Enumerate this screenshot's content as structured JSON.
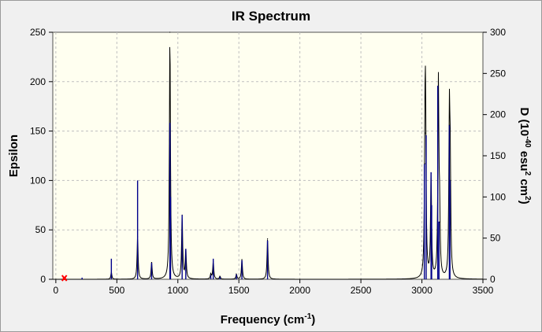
{
  "chart_data": {
    "type": "line",
    "title": "IR Spectrum",
    "xlabel_main": "Frequency (cm",
    "xlabel_sup": "-1",
    "xlabel_end": ")",
    "ylabel_left": "Epsilon",
    "ylabel_right_parts": [
      "D (10",
      "-40",
      " esu",
      "2",
      " cm",
      "2",
      ")"
    ],
    "xlim": [
      -25,
      3500
    ],
    "ylim_left": [
      0,
      250
    ],
    "ylim_right": [
      0,
      300
    ],
    "x_ticks": [
      0,
      500,
      1000,
      1500,
      2000,
      2500,
      3000,
      3500
    ],
    "y_left_ticks": [
      0,
      50,
      100,
      150,
      200,
      250
    ],
    "y_right_ticks": [
      0,
      50,
      100,
      150,
      200,
      250,
      300
    ],
    "grid": true,
    "colors": {
      "plot_bg": "#fffff0",
      "spectrum": "#000000",
      "sticks": "#00008b",
      "grid": "#bfbfbf",
      "marker": "#ff0000"
    },
    "series": [
      {
        "kind": "stick-intensities-right-axis",
        "x": [
          70,
          215,
          455,
          670,
          785,
          935,
          940,
          1035,
          1065,
          1270,
          1290,
          1345,
          1480,
          1525,
          1735,
          3020,
          3035,
          3075,
          3080,
          3130,
          3140,
          3225,
          3230
        ],
        "values": [
          2,
          2,
          25,
          120,
          20,
          190,
          100,
          78,
          37,
          5,
          25,
          3,
          6,
          23,
          47,
          140,
          175,
          130,
          90,
          235,
          70,
          187,
          120
        ]
      },
      {
        "kind": "spectrum-peaks-left-axis",
        "x": [
          455,
          670,
          785,
          935,
          1035,
          1065,
          1270,
          1290,
          1345,
          1480,
          1525,
          1735,
          3025,
          3030,
          3075,
          3135,
          3145,
          3225,
          3232
        ],
        "values": [
          7,
          43,
          17,
          250,
          65,
          30,
          5,
          18,
          3,
          5,
          20,
          41,
          117,
          148,
          107,
          196,
          58,
          156,
          100
        ]
      }
    ],
    "marker_x": 70
  }
}
